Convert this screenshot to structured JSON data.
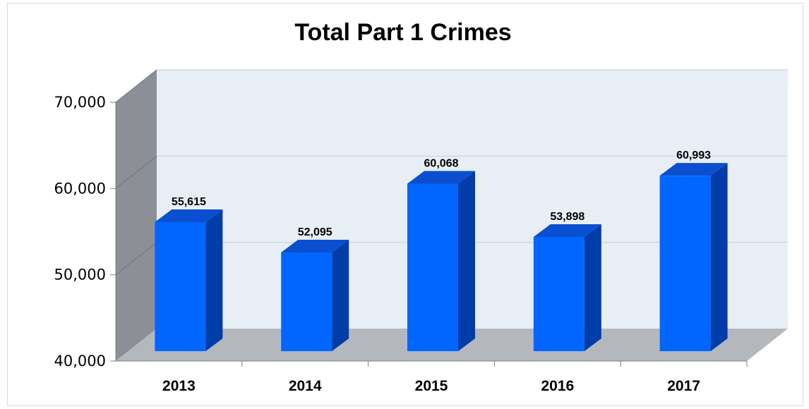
{
  "chart_data": {
    "type": "bar",
    "title": "Total Part 1 Crimes",
    "categories": [
      "2013",
      "2014",
      "2015",
      "2016",
      "2017"
    ],
    "values": [
      55615,
      52095,
      60068,
      53898,
      60993
    ],
    "data_labels": [
      "55,615",
      "52,095",
      "60,068",
      "53,898",
      "60,993"
    ],
    "xlabel": "",
    "ylabel": "",
    "ylim": [
      40000,
      70000
    ],
    "yticks": [
      40000,
      50000,
      60000,
      70000
    ],
    "ytick_labels": [
      "40,000",
      "50,000",
      "60,000",
      "70,000"
    ],
    "grid": true,
    "legend": "none",
    "style": "3d",
    "colors": {
      "bar_front": "#0066ff",
      "bar_side": "#003da8",
      "bar_top": "#0a4fcf",
      "back_wall": "#e8eef5",
      "side_wall": "#8c9096",
      "floor": "#b4b8bd",
      "gridline": "#c7d2de"
    }
  }
}
